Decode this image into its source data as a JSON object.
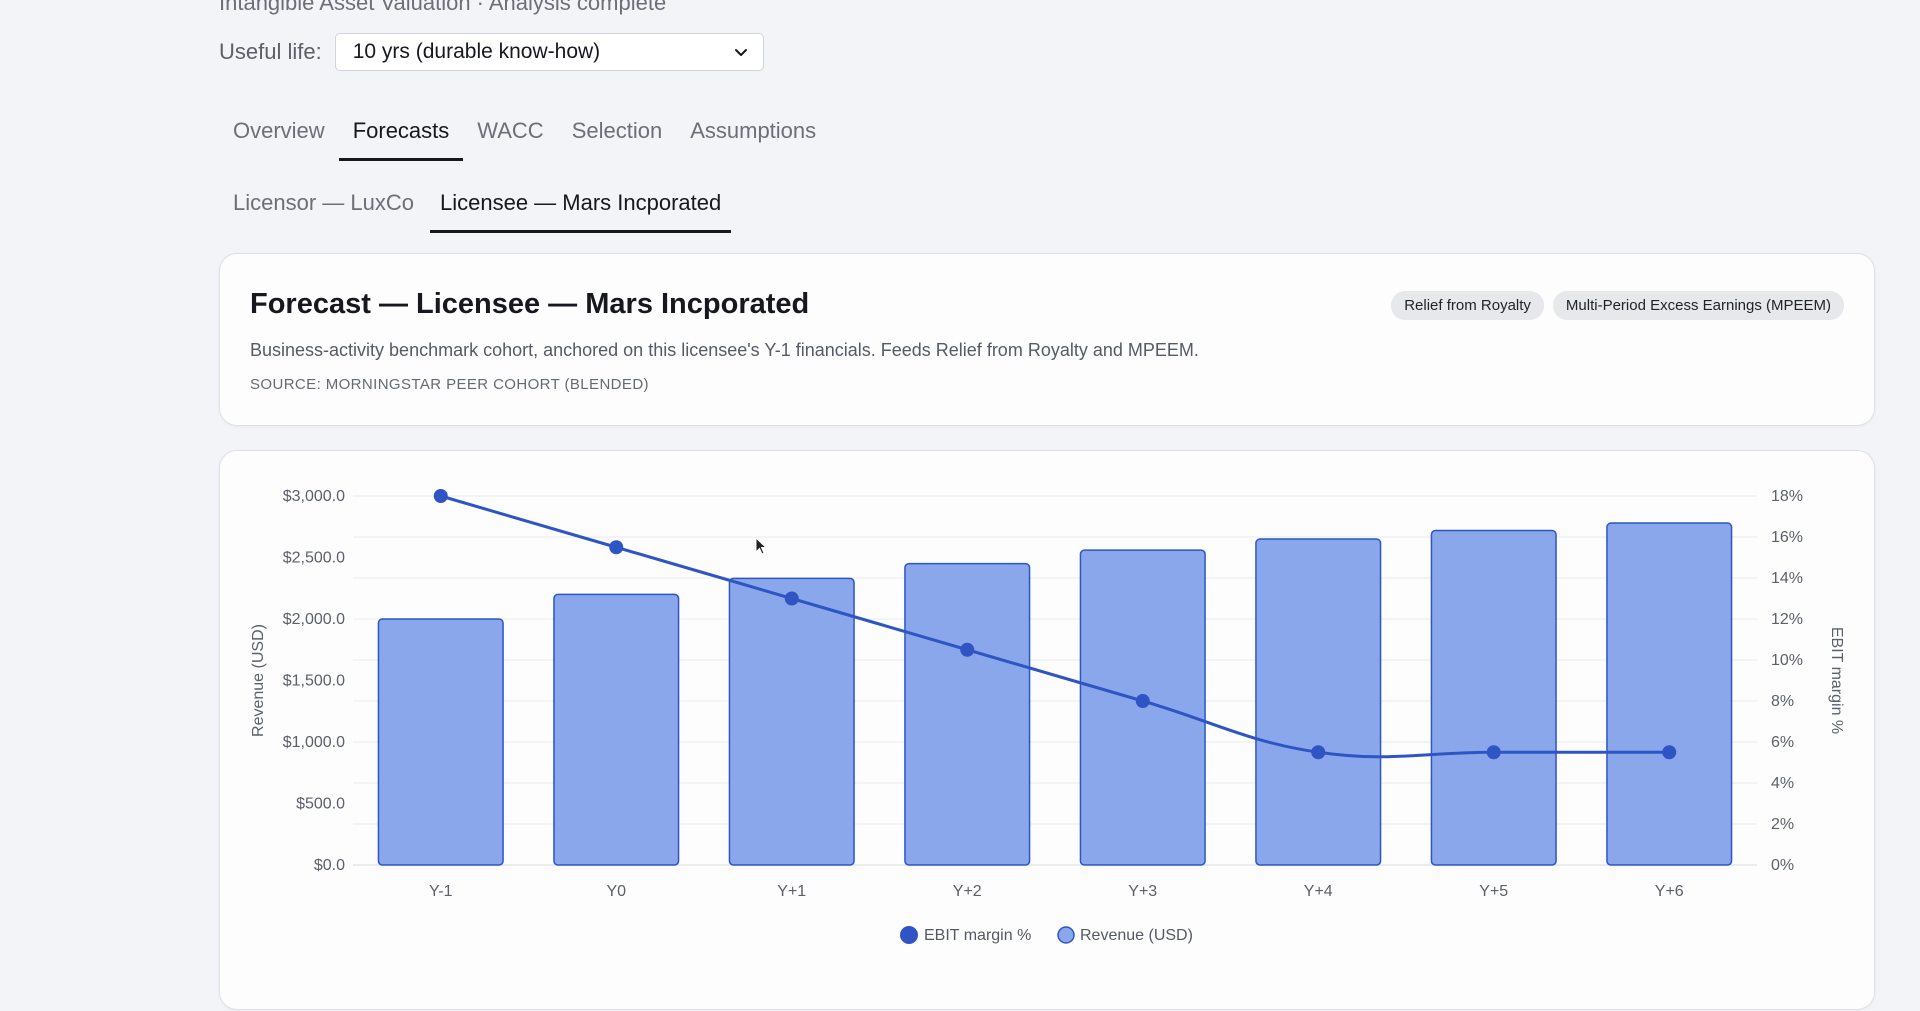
{
  "header": {
    "subtitle": "Intangible Asset Valuation · Analysis complete",
    "useful_life_label": "Useful life:",
    "useful_life_value": "10 yrs (durable know-how)"
  },
  "tabs": [
    {
      "label": "Overview",
      "active": false
    },
    {
      "label": "Forecasts",
      "active": true
    },
    {
      "label": "WACC",
      "active": false
    },
    {
      "label": "Selection",
      "active": false
    },
    {
      "label": "Assumptions",
      "active": false
    }
  ],
  "subtabs": [
    {
      "label": "Licensor — LuxCo",
      "active": false
    },
    {
      "label": "Licensee — Mars Incporated",
      "active": true
    }
  ],
  "forecast_card": {
    "title": "Forecast — Licensee — Mars Incporated",
    "badges": [
      "Relief from Royalty",
      "Multi-Period Excess Earnings (MPEEM)"
    ],
    "description": "Business-activity benchmark cohort, anchored on this licensee's Y-1 financials. Feeds Relief from Royalty and MPEEM.",
    "source": "SOURCE: MORNINGSTAR PEER COHORT (BLENDED)"
  },
  "chart_data": {
    "type": "bar",
    "categories": [
      "Y-1",
      "Y0",
      "Y+1",
      "Y+2",
      "Y+3",
      "Y+4",
      "Y+5",
      "Y+6"
    ],
    "series": [
      {
        "name": "Revenue (USD)",
        "type": "bar",
        "axis": "left",
        "values": [
          2000,
          2200,
          2330,
          2450,
          2560,
          2650,
          2720,
          2780
        ]
      },
      {
        "name": "EBIT margin %",
        "type": "line",
        "axis": "right",
        "values": [
          18,
          15.5,
          13,
          10.5,
          8,
          5.5,
          5.5,
          5.5
        ]
      }
    ],
    "ylabel": "Revenue (USD)",
    "y2label": "EBIT margin %",
    "ylim": [
      0,
      3000
    ],
    "y2lim": [
      0,
      18
    ],
    "yticks": [
      "$0.0",
      "$500.0",
      "$1,000.0",
      "$1,500.0",
      "$2,000.0",
      "$2,500.0",
      "$3,000.0"
    ],
    "y2ticks": [
      "0%",
      "2%",
      "4%",
      "6%",
      "8%",
      "10%",
      "12%",
      "14%",
      "16%",
      "18%"
    ],
    "legend": [
      "EBIT margin %",
      "Revenue (USD)"
    ],
    "legend_position": "bottom",
    "grid": true,
    "colors": {
      "bar_fill": "#8aa7ec",
      "bar_stroke": "#2f55c4",
      "line": "#2f55c4"
    }
  }
}
